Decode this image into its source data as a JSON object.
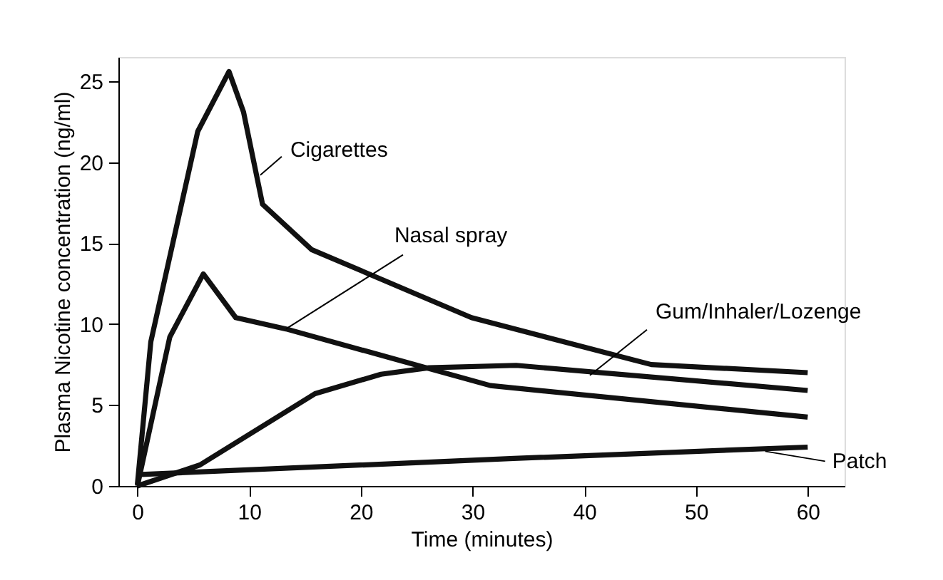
{
  "chart_data": {
    "type": "line",
    "xlabel": "Time (minutes)",
    "ylabel": "Plasma Nicotine concentration (ng/ml)",
    "xlim": [
      -1.7,
      63.3
    ],
    "xticks": [
      0,
      10,
      20,
      30,
      40,
      50,
      60
    ],
    "ylim": [
      0,
      26.5
    ],
    "yticks": [
      0,
      5,
      10,
      15,
      20,
      25
    ],
    "grid": false,
    "legend": false,
    "marker": "none",
    "line_style": "solid",
    "series": [
      {
        "color": "#111111",
        "x": [
          0,
          1.2,
          5.4,
          8.2,
          9.5,
          11.2,
          15.6,
          29.9,
          46,
          60
        ],
        "values": [
          0.1,
          8.9,
          21.9,
          25.6,
          23.1,
          17.4,
          14.6,
          10.4,
          7.5,
          7.0
        ]
      },
      {
        "color": "#111111",
        "x": [
          0,
          2.9,
          5.9,
          8.8,
          13.3,
          31.6,
          60
        ],
        "values": [
          0,
          9.2,
          13.1,
          10.4,
          9.7,
          6.2,
          4.25
        ]
      },
      {
        "color": "#111111",
        "x": [
          0,
          5.6,
          15.9,
          21.8,
          26.1,
          33.9,
          60
        ],
        "values": [
          0,
          1.3,
          5.7,
          6.9,
          7.3,
          7.45,
          5.9
        ]
      },
      {
        "color": "#111111",
        "x": [
          0,
          33.7,
          60
        ],
        "values": [
          0.7,
          1.7,
          2.4
        ]
      }
    ],
    "annotations": [
      {
        "text": "Cigarettes",
        "x": 11.0,
        "y": 19.2
      },
      {
        "text": "Nasal spray",
        "x": 13.3,
        "y": 9.7
      },
      {
        "text": "Gum/Inhaler/Lozenge",
        "x": 40.5,
        "y": 6.83
      },
      {
        "text": "Patch",
        "x": 56.2,
        "y": 2.14
      }
    ]
  }
}
